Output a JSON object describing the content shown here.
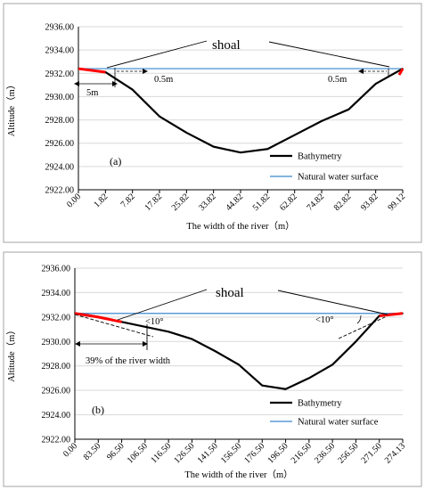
{
  "chart_data": [
    {
      "type": "line",
      "panel_label": "(a)",
      "xlabel": "The width of the river（m）",
      "ylabel": "Altitude（m）",
      "ylim": [
        2922,
        2936
      ],
      "y_ticks": [
        "2922.00",
        "2924.00",
        "2926.00",
        "2928.00",
        "2930.00",
        "2932.00",
        "2934.00",
        "2936.00"
      ],
      "categories": [
        "0.00",
        "1.82",
        "7.82",
        "17.82",
        "25.82",
        "33.82",
        "44.82",
        "51.82",
        "62.82",
        "74.82",
        "82.82",
        "93.82",
        "99.12"
      ],
      "grid": true,
      "legend_position": "bottom-right",
      "series": [
        {
          "name": "Bathymetry",
          "color": "#000000",
          "values": [
            2932.4,
            2932.1,
            2930.6,
            2928.3,
            2926.9,
            2925.7,
            2925.2,
            2925.5,
            2926.7,
            2927.9,
            2928.9,
            2931.1,
            2932.4
          ]
        },
        {
          "name": "Natural water surface",
          "color": "#5b9bd5",
          "values": [
            2932.4,
            2932.4,
            2932.4,
            2932.4,
            2932.4,
            2932.4,
            2932.4,
            2932.4,
            2932.4,
            2932.4,
            2932.4,
            2932.4,
            2932.4
          ]
        }
      ],
      "shoal_color": "#ff0000",
      "annotations": {
        "shoal": "shoal",
        "depth_left": "0.5m",
        "depth_right": "0.5m",
        "width_left": "5m"
      }
    },
    {
      "type": "line",
      "panel_label": "(b)",
      "xlabel": "The width of the river（m）",
      "ylabel": "Altitude（m）",
      "ylim": [
        2922,
        2936
      ],
      "y_ticks": [
        "2922.00",
        "2924.00",
        "2926.00",
        "2928.00",
        "2930.00",
        "2932.00",
        "2934.00",
        "2936.00"
      ],
      "categories": [
        "0.00",
        "83.50",
        "96.50",
        "106.50",
        "116.50",
        "126.50",
        "141.50",
        "156.50",
        "176.50",
        "196.50",
        "216.50",
        "236.50",
        "256.50",
        "271.50",
        "274.13"
      ],
      "grid": true,
      "legend_position": "bottom-right",
      "series": [
        {
          "name": "Bathymetry",
          "color": "#000000",
          "values": [
            2932.3,
            2932.0,
            2931.6,
            2931.2,
            2930.8,
            2930.2,
            2929.2,
            2928.1,
            2926.4,
            2926.1,
            2927.0,
            2928.1,
            2930.0,
            2932.1,
            2932.3
          ]
        },
        {
          "name": "Natural water surface",
          "color": "#5b9bd5",
          "values": [
            2932.3,
            2932.3,
            2932.3,
            2932.3,
            2932.3,
            2932.3,
            2932.3,
            2932.3,
            2932.3,
            2932.3,
            2932.3,
            2932.3,
            2932.3,
            2932.3,
            2932.3
          ]
        }
      ],
      "shoal_color": "#ff0000",
      "annotations": {
        "shoal": "shoal",
        "angle_left": "<10°",
        "angle_right": "<10°",
        "width_label": "39% of the river width"
      }
    }
  ]
}
